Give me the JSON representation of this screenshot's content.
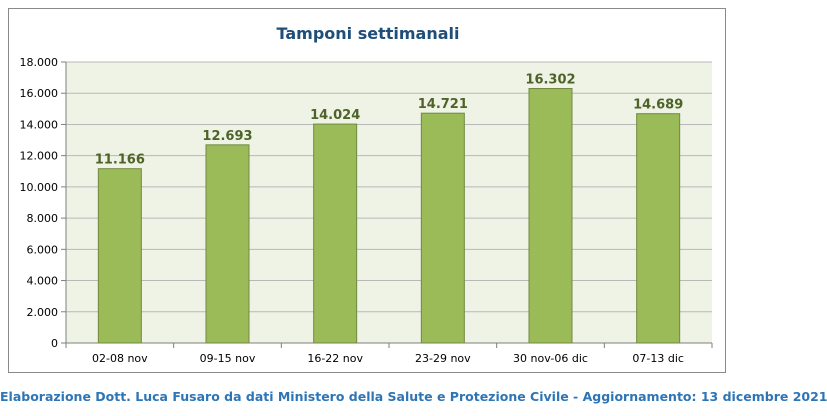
{
  "chart_data": {
    "type": "bar",
    "title": "Tamponi settimanali",
    "categories": [
      "02-08 nov",
      "09-15 nov",
      "16-22 nov",
      "23-29 nov",
      "30 nov-06 dic",
      "07-13 dic"
    ],
    "values": [
      11166,
      12693,
      14024,
      14721,
      16302,
      14689
    ],
    "data_labels": [
      "11.166",
      "12.693",
      "14.024",
      "14.721",
      "16.302",
      "14.689"
    ],
    "y_ticks": [
      0,
      2000,
      4000,
      6000,
      8000,
      10000,
      12000,
      14000,
      16000,
      18000
    ],
    "y_tick_labels": [
      "0",
      "2.000",
      "4.000",
      "6.000",
      "8.000",
      "10.000",
      "12.000",
      "14.000",
      "16.000",
      "18.000"
    ],
    "ylim": [
      0,
      18000
    ],
    "xlabel": "",
    "ylabel": "",
    "grid": true,
    "legend": "none",
    "colors": {
      "bar_fill": "#9bbb59",
      "bar_stroke": "#71893f",
      "data_label": "#4f6228",
      "plot_background": "#eef3e6",
      "gridline": "#b8b8b8",
      "title": "#1f4e79"
    }
  },
  "footer": {
    "caption": "Elaborazione Dott. Luca Fusaro da dati Ministero della Salute e Protezione Civile - Aggiornamento: 13 dicembre 2021",
    "color": "#2e75b6"
  }
}
